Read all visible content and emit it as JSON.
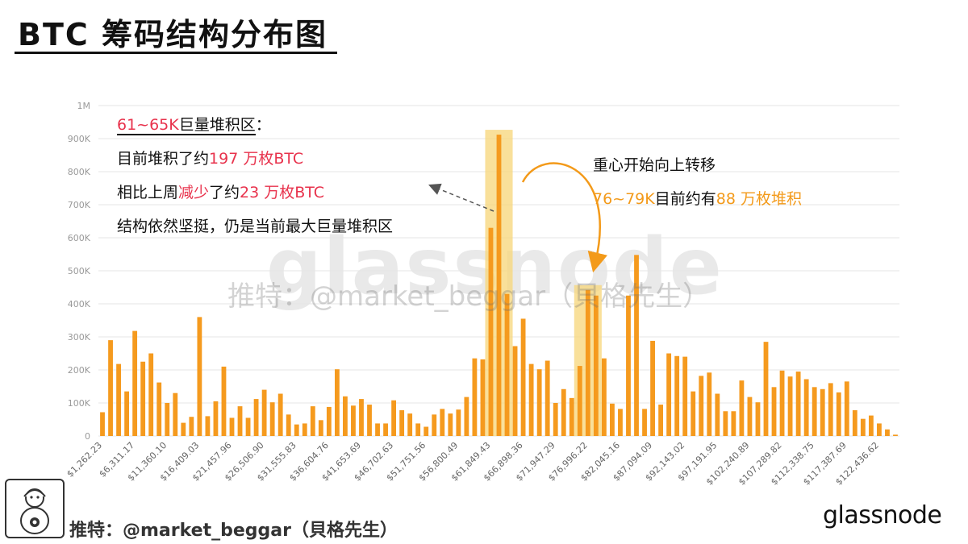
{
  "title": "BTC 筹码结构分布图",
  "watermark": {
    "brand": "glassnode",
    "handle": "推特：@market_beggar（貝格先生）"
  },
  "annotations": {
    "left_line1_range": "61~65K",
    "left_line1_text": "巨量堆积区",
    "left_line1_colon": "：",
    "left_line2_prefix": "目前堆积了约",
    "left_line2_value": "197 万枚BTC",
    "left_line3_prefix": "相比上周",
    "left_line3_change": "减少",
    "left_line3_mid": "了约",
    "left_line3_value": "23 万枚BTC",
    "left_line4": "结构依然坚挺，仍是当前最大巨量堆积区",
    "right_line1": "重心开始向上转移",
    "right_line2_range": "76~79K",
    "right_line2_mid": "目前约有",
    "right_line2_value": "88 万枚堆积"
  },
  "footer": {
    "handle": "推特：@market_beggar（貝格先生）",
    "logo": "glassnode"
  },
  "colors": {
    "bar": "#f59a1e",
    "highlight": "#f7d678",
    "grid": "#e5e5e5",
    "red": "#e8334d",
    "orange": "#f39a1a",
    "arrow": "#f39a1a"
  },
  "chart_data": {
    "type": "bar",
    "ylim": [
      0,
      1000000
    ],
    "yticks": [
      "0",
      "100K",
      "200K",
      "300K",
      "400K",
      "500K",
      "600K",
      "700K",
      "800K",
      "900K",
      "1M"
    ],
    "xtick_labels": [
      "$1,262.23",
      "$6,311.17",
      "$11,360.10",
      "$16,409.03",
      "$21,457.96",
      "$26,506.90",
      "$31,555.83",
      "$36,604.76",
      "$41,653.69",
      "$46,702.63",
      "$51,751.56",
      "$56,800.49",
      "$61,849.43",
      "$66,898.36",
      "$71,947.29",
      "$76,996.22",
      "$82,045.16",
      "$87,094.09",
      "$92,143.02",
      "$97,191.95",
      "$102,240.89",
      "$107,289.82",
      "$112,338.75",
      "$117,387.69",
      "$122,436.62"
    ],
    "xtick_every": 4,
    "values": [
      72000,
      290000,
      218000,
      135000,
      318000,
      225000,
      250000,
      162000,
      100000,
      130000,
      40000,
      58000,
      360000,
      60000,
      105000,
      210000,
      55000,
      90000,
      55000,
      112000,
      140000,
      102000,
      128000,
      65000,
      35000,
      38000,
      90000,
      48000,
      88000,
      202000,
      120000,
      92000,
      112000,
      95000,
      38000,
      38000,
      108000,
      78000,
      68000,
      38000,
      28000,
      65000,
      82000,
      68000,
      80000,
      118000,
      235000,
      232000,
      630000,
      912000,
      430000,
      272000,
      355000,
      218000,
      202000,
      228000,
      100000,
      142000,
      115000,
      212000,
      442000,
      425000,
      235000,
      98000,
      82000,
      425000,
      548000,
      82000,
      288000,
      95000,
      250000,
      242000,
      240000,
      135000,
      182000,
      192000,
      128000,
      75000,
      75000,
      168000,
      118000,
      102000,
      285000,
      148000,
      198000,
      180000,
      195000,
      172000,
      148000,
      142000,
      160000,
      132000,
      165000,
      78000,
      52000,
      62000,
      38000,
      20000,
      4000
    ],
    "highlight_ranges": [
      [
        48,
        50
      ],
      [
        59,
        61
      ]
    ]
  }
}
